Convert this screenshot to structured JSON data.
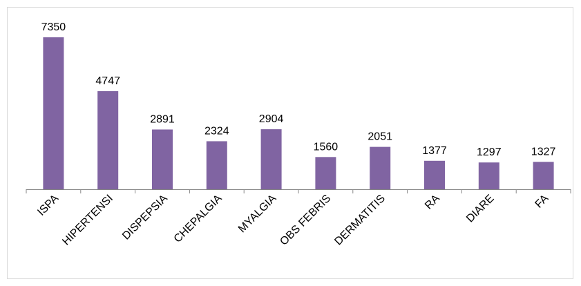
{
  "chart_data": {
    "type": "bar",
    "categories": [
      "ISPA",
      "HIPERTENSI",
      "DISPEPSIA",
      "CHEPALGIA",
      "MYALGIA",
      "OBS FEBRIS",
      "DERMATITIS",
      "RA",
      "DIARE",
      "FA"
    ],
    "values": [
      7350,
      4747,
      2891,
      2324,
      2904,
      1560,
      2051,
      1377,
      1297,
      1327
    ],
    "color": "#8064a2"
  }
}
